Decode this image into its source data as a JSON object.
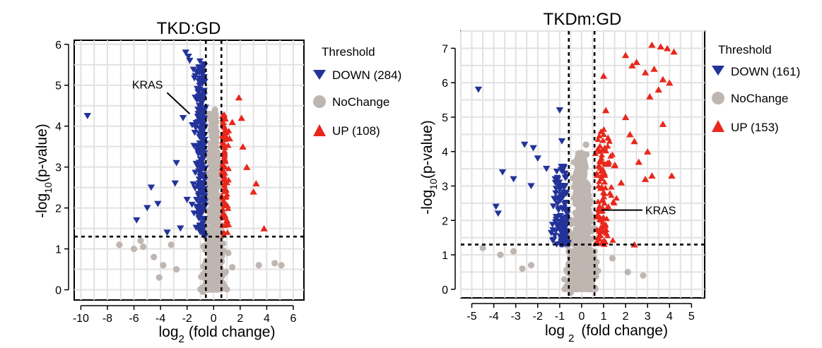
{
  "chart_data": [
    {
      "type": "scatter",
      "title": "TKD:GD",
      "xlabel_main": "log",
      "xlabel_sub": "2",
      "xlabel_rest": "(fold change)",
      "ylabel_pre": "-log",
      "ylabel_sub": "10",
      "ylabel_post": "(p-value)",
      "xlim": [
        -10.5,
        6.8
      ],
      "ylim": [
        -0.25,
        6.1
      ],
      "xticks": [
        -10,
        -8,
        -6,
        -4,
        -2,
        0,
        2,
        4,
        6
      ],
      "yticks": [
        0,
        1,
        2,
        3,
        4,
        5,
        6
      ],
      "fc_threshold": 0.585,
      "p_threshold": 1.3,
      "legend": {
        "title": "Threshold",
        "entries": [
          {
            "label": "DOWN (284)",
            "group": "down"
          },
          {
            "label": "NoChange",
            "group": "nochange"
          },
          {
            "label": "UP (108)",
            "group": "up"
          }
        ]
      },
      "annotation": {
        "label": "KRAS",
        "x": -1.8,
        "y": 4.3
      },
      "series": [
        {
          "name": "DOWN",
          "count": 284,
          "color": "#23339a",
          "points": [
            [
              -9.5,
              4.25
            ],
            [
              -5.8,
              1.7
            ],
            [
              -5.0,
              2.0
            ],
            [
              -4.7,
              2.5
            ],
            [
              -4.2,
              2.1
            ],
            [
              -3.5,
              1.4
            ],
            [
              -2.9,
              2.6
            ],
            [
              -2.8,
              3.1
            ],
            [
              -2.3,
              4.2
            ],
            [
              -2.1,
              5.8
            ],
            [
              -1.9,
              5.7
            ],
            [
              -1.8,
              5.6
            ],
            [
              -2.0,
              2.2
            ],
            [
              -2.5,
              1.5
            ]
          ]
        },
        {
          "name": "NoChange",
          "count": null,
          "color": "#bfb6b1",
          "points": [
            [
              -7.1,
              1.1
            ],
            [
              -6.0,
              1.0
            ],
            [
              -5.5,
              1.2
            ],
            [
              -5.3,
              1.05
            ],
            [
              -4.5,
              0.8
            ],
            [
              -4.1,
              0.3
            ],
            [
              -3.8,
              0.6
            ],
            [
              -3.2,
              1.1
            ],
            [
              -2.8,
              0.5
            ],
            [
              3.4,
              0.6
            ],
            [
              4.6,
              0.65
            ],
            [
              5.1,
              0.6
            ],
            [
              1.4,
              0.55
            ],
            [
              1.1,
              0.9
            ],
            [
              0.8,
              0.4
            ],
            [
              -0.8,
              -0.05
            ],
            [
              -0.3,
              4.3
            ],
            [
              0.1,
              4.4
            ]
          ]
        },
        {
          "name": "UP",
          "count": 108,
          "color": "#e8271c",
          "points": [
            [
              1.9,
              4.7
            ],
            [
              2.1,
              4.2
            ],
            [
              2.2,
              3.5
            ],
            [
              2.5,
              3.0
            ],
            [
              3.2,
              2.6
            ],
            [
              3.0,
              2.4
            ],
            [
              3.8,
              1.5
            ],
            [
              1.2,
              3.7
            ],
            [
              1.4,
              4.1
            ],
            [
              0.9,
              2.1
            ],
            [
              1.0,
              1.7
            ]
          ]
        }
      ]
    },
    {
      "type": "scatter",
      "title": "TKDm:GD",
      "xlabel_main": "log",
      "xlabel_sub": "2",
      "xlabel_rest": "(fold change)",
      "ylabel_pre": "-log",
      "ylabel_sub": "10",
      "ylabel_post": "(p-value)",
      "xlim": [
        -5.5,
        5.6
      ],
      "ylim": [
        -0.25,
        7.5
      ],
      "xticks": [
        -5,
        -4,
        -3,
        -2,
        -1,
        0,
        1,
        2,
        3,
        4,
        5
      ],
      "yticks": [
        0,
        1,
        2,
        3,
        4,
        5,
        6,
        7
      ],
      "fc_threshold": 0.585,
      "p_threshold": 1.3,
      "legend": {
        "title": "Threshold",
        "entries": [
          {
            "label": "DOWN (161)",
            "group": "down"
          },
          {
            "label": "NoChange",
            "group": "nochange"
          },
          {
            "label": "UP (153)",
            "group": "up"
          }
        ]
      },
      "annotation": {
        "label": "KRAS",
        "x": 0.9,
        "y": 2.3
      },
      "series": [
        {
          "name": "DOWN",
          "count": 161,
          "color": "#23339a",
          "points": [
            [
              -4.7,
              5.8
            ],
            [
              -3.9,
              2.4
            ],
            [
              -3.8,
              2.2
            ],
            [
              -3.6,
              3.4
            ],
            [
              -3.1,
              3.2
            ],
            [
              -2.6,
              4.2
            ],
            [
              -2.2,
              4.1
            ],
            [
              -2.0,
              3.8
            ],
            [
              -1.6,
              3.5
            ],
            [
              -1.2,
              3.2
            ],
            [
              -2.3,
              3.0
            ],
            [
              -1.0,
              5.2
            ],
            [
              -0.9,
              4.3
            ]
          ]
        },
        {
          "name": "NoChange",
          "count": null,
          "color": "#bfb6b1",
          "points": [
            [
              -4.5,
              1.2
            ],
            [
              -3.7,
              1.0
            ],
            [
              -3.1,
              1.1
            ],
            [
              -2.7,
              0.6
            ],
            [
              -2.3,
              0.7
            ],
            [
              2.8,
              0.4
            ],
            [
              2.1,
              0.5
            ],
            [
              1.4,
              0.9
            ],
            [
              -0.5,
              -0.1
            ],
            [
              0.2,
              4.2
            ],
            [
              0.0,
              3.7
            ]
          ]
        },
        {
          "name": "UP",
          "count": 153,
          "color": "#e8271c",
          "points": [
            [
              3.2,
              7.1
            ],
            [
              3.6,
              7.05
            ],
            [
              3.9,
              7.0
            ],
            [
              4.2,
              6.9
            ],
            [
              2.0,
              6.8
            ],
            [
              2.3,
              6.5
            ],
            [
              2.5,
              6.6
            ],
            [
              2.9,
              6.3
            ],
            [
              3.3,
              6.4
            ],
            [
              3.7,
              6.1
            ],
            [
              4.0,
              6.0
            ],
            [
              3.1,
              5.6
            ],
            [
              3.5,
              5.8
            ],
            [
              2.0,
              5.0
            ],
            [
              2.2,
              4.5
            ],
            [
              2.4,
              4.3
            ],
            [
              3.0,
              4.0
            ],
            [
              3.7,
              4.8
            ],
            [
              2.6,
              3.7
            ],
            [
              2.9,
              3.2
            ],
            [
              3.2,
              3.3
            ],
            [
              4.1,
              3.3
            ],
            [
              1.8,
              3.1
            ],
            [
              1.5,
              3.6
            ],
            [
              1.2,
              4.4
            ],
            [
              1.1,
              5.2
            ],
            [
              1.0,
              6.2
            ],
            [
              2.4,
              1.3
            ]
          ]
        }
      ]
    }
  ]
}
